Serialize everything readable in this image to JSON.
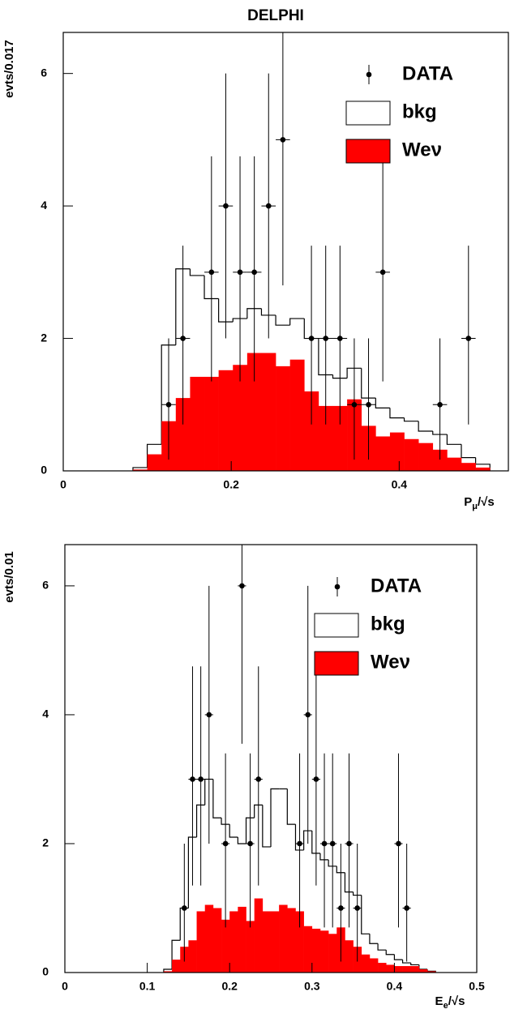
{
  "chart_data": [
    {
      "type": "histogram",
      "title": "DELPHI",
      "ylabel": "evts/0.017",
      "xlabel_parts": [
        "P",
        "μ",
        "/√s"
      ],
      "xlim": [
        0,
        0.53
      ],
      "ylim": [
        0,
        6.62
      ],
      "xticks": [
        0,
        0.2,
        0.4
      ],
      "yticks": [
        0,
        2,
        4,
        6
      ],
      "legend": "upper right",
      "bins": [
        0.083,
        0.1,
        0.117,
        0.134,
        0.151,
        0.168,
        0.185,
        0.202,
        0.219,
        0.236,
        0.253,
        0.27,
        0.287,
        0.304,
        0.321,
        0.338,
        0.355,
        0.372,
        0.389,
        0.406,
        0.423,
        0.44,
        0.457,
        0.474,
        0.491,
        0.508
      ],
      "series": [
        {
          "name": "bkg",
          "color": "#ffffff",
          "values": [
            0.05,
            0.4,
            1.9,
            3.05,
            2.95,
            2.6,
            2.25,
            2.3,
            2.45,
            2.35,
            2.2,
            2.3,
            2.0,
            1.45,
            1.4,
            1.55,
            1.1,
            0.95,
            0.8,
            0.75,
            0.6,
            0.55,
            0.4,
            0.2,
            0.1
          ]
        },
        {
          "name": "Weν",
          "color": "#ff0000",
          "values": [
            0.02,
            0.25,
            0.75,
            1.1,
            1.42,
            1.42,
            1.52,
            1.6,
            1.78,
            1.78,
            1.58,
            1.68,
            1.2,
            0.98,
            0.98,
            1.08,
            0.68,
            0.52,
            0.58,
            0.48,
            0.42,
            0.32,
            0.2,
            0.12,
            0.05
          ]
        }
      ],
      "points": {
        "name": "DATA",
        "color": "#000000",
        "xerr": 0.0085,
        "x": [
          0.1255,
          0.1425,
          0.1765,
          0.1935,
          0.2105,
          0.2275,
          0.2445,
          0.2615,
          0.2955,
          0.3125,
          0.3295,
          0.3465,
          0.3635,
          0.3805,
          0.4485,
          0.4825
        ],
        "y": [
          1,
          2,
          3,
          4,
          3,
          3,
          4,
          5,
          2,
          2,
          2,
          1,
          1,
          3,
          1,
          2
        ],
        "yerr_low": [
          0.83,
          1.3,
          1.65,
          2.0,
          1.65,
          1.65,
          2.0,
          2.2,
          1.3,
          1.3,
          1.3,
          0.83,
          0.83,
          1.65,
          0.83,
          1.3
        ],
        "yerr_high": [
          1.0,
          1.4,
          1.75,
          2.0,
          1.75,
          1.75,
          2.0,
          2.35,
          1.4,
          1.4,
          1.4,
          1.0,
          1.0,
          1.75,
          1.0,
          1.4
        ]
      }
    },
    {
      "type": "histogram",
      "ylabel": "evts/0.01",
      "xlabel_parts": [
        "E",
        "e",
        "/√s"
      ],
      "xlim": [
        0,
        0.5
      ],
      "ylim": [
        0,
        6.64
      ],
      "xticks": [
        0,
        0.1,
        0.2,
        0.3,
        0.4,
        0.5
      ],
      "yticks": [
        0,
        2,
        4,
        6
      ],
      "legend": "upper right",
      "bins": [
        0.12,
        0.13,
        0.14,
        0.15,
        0.16,
        0.17,
        0.18,
        0.19,
        0.2,
        0.21,
        0.22,
        0.23,
        0.24,
        0.25,
        0.26,
        0.27,
        0.28,
        0.29,
        0.3,
        0.31,
        0.32,
        0.33,
        0.34,
        0.35,
        0.36,
        0.37,
        0.38,
        0.39,
        0.4,
        0.41,
        0.42,
        0.43,
        0.44,
        0.45
      ],
      "series": [
        {
          "name": "bkg",
          "color": "#ffffff",
          "values": [
            0.05,
            0.5,
            1.0,
            2.1,
            2.6,
            3.0,
            2.4,
            2.3,
            2.1,
            2.0,
            2.4,
            2.6,
            1.95,
            2.85,
            2.85,
            2.3,
            1.9,
            2.2,
            1.85,
            1.75,
            1.65,
            1.55,
            1.25,
            1.2,
            0.6,
            0.45,
            0.35,
            0.28,
            0.2,
            0.15,
            0.12,
            0.05,
            0.02
          ]
        },
        {
          "name": "Weν",
          "color": "#ff0000",
          "values": [
            0.02,
            0.2,
            0.4,
            0.5,
            0.95,
            1.05,
            1.0,
            0.82,
            0.95,
            1.02,
            0.8,
            1.15,
            0.95,
            0.95,
            1.05,
            1.0,
            0.95,
            0.72,
            0.68,
            0.65,
            0.6,
            0.7,
            0.5,
            0.4,
            0.28,
            0.22,
            0.15,
            0.12,
            0.1,
            0.1,
            0.1,
            0.05,
            0.02
          ]
        }
      ],
      "points": {
        "name": "DATA",
        "color": "#000000",
        "xerr": 0.005,
        "x": [
          0.145,
          0.155,
          0.165,
          0.175,
          0.195,
          0.215,
          0.225,
          0.235,
          0.285,
          0.295,
          0.305,
          0.315,
          0.325,
          0.335,
          0.345,
          0.355,
          0.405,
          0.415
        ],
        "y": [
          1,
          3,
          3,
          4,
          2,
          6,
          2,
          3,
          2,
          4,
          3,
          2,
          2,
          1,
          2,
          1,
          2,
          1
        ],
        "yerr_low": [
          0.83,
          1.65,
          1.65,
          2.0,
          1.3,
          2.45,
          1.3,
          1.65,
          1.3,
          2.0,
          1.65,
          1.3,
          1.3,
          0.83,
          1.3,
          0.83,
          1.3,
          0.83
        ],
        "yerr_high": [
          1.0,
          1.75,
          1.75,
          2.0,
          1.4,
          2.6,
          1.4,
          1.75,
          1.4,
          2.0,
          1.75,
          1.4,
          1.4,
          1.0,
          1.4,
          1.0,
          1.4,
          1.0
        ]
      }
    }
  ]
}
